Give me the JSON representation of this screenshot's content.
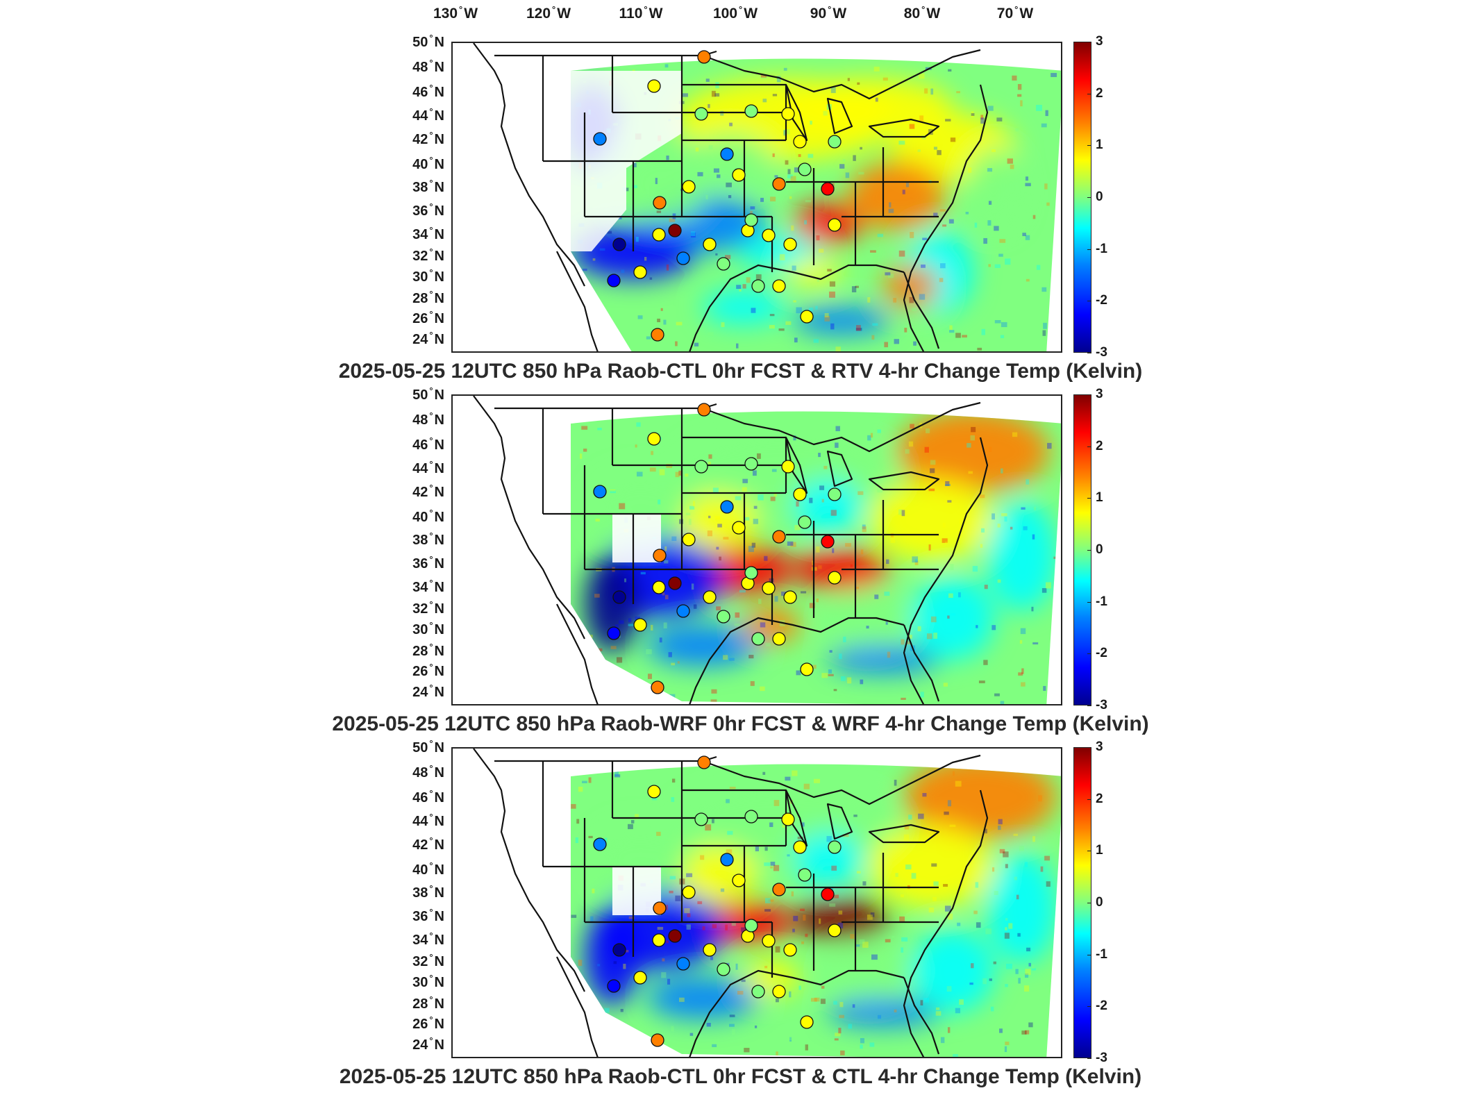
{
  "longitude_labels": [
    {
      "text": "130",
      "dir": "W"
    },
    {
      "text": "120",
      "dir": "W"
    },
    {
      "text": "110",
      "dir": "W"
    },
    {
      "text": "100",
      "dir": "W"
    },
    {
      "text": "90",
      "dir": "W"
    },
    {
      "text": "80",
      "dir": "W"
    },
    {
      "text": "70",
      "dir": "W"
    }
  ],
  "latitude_labels": [
    "50",
    "48",
    "46",
    "44",
    "42",
    "40",
    "38",
    "36",
    "34",
    "32",
    "30",
    "28",
    "26",
    "24"
  ],
  "latitude_dir": "N",
  "degree_symbol": "°",
  "colorbar": {
    "ticks": [
      "3",
      "2",
      "1",
      "0",
      "-1",
      "-2",
      "-3"
    ],
    "min": -3,
    "max": 3,
    "colormap": "jet"
  },
  "panels": [
    {
      "title": "2025-05-25 12UTC 850 hPa Raob-CTL 0hr FCST & RTV 4-hr Change Temp (Kelvin)"
    },
    {
      "title": "2025-05-25 12UTC 850 hPa Raob-WRF 0hr FCST & WRF 4-hr Change Temp (Kelvin)"
    },
    {
      "title": "2025-05-25 12UTC 850 hPa Raob-CTL 0hr FCST & CTL 4-hr Change Temp (Kelvin)"
    }
  ],
  "colors": {
    "deep_blue": "#00008f",
    "blue": "#0000ff",
    "light_blue": "#0080ff",
    "cyan": "#00ffff",
    "green": "#80ff80",
    "yellow": "#ffff00",
    "orange": "#ff8000",
    "red": "#ff0000",
    "dark_red": "#800000",
    "outline": "#111111"
  }
}
